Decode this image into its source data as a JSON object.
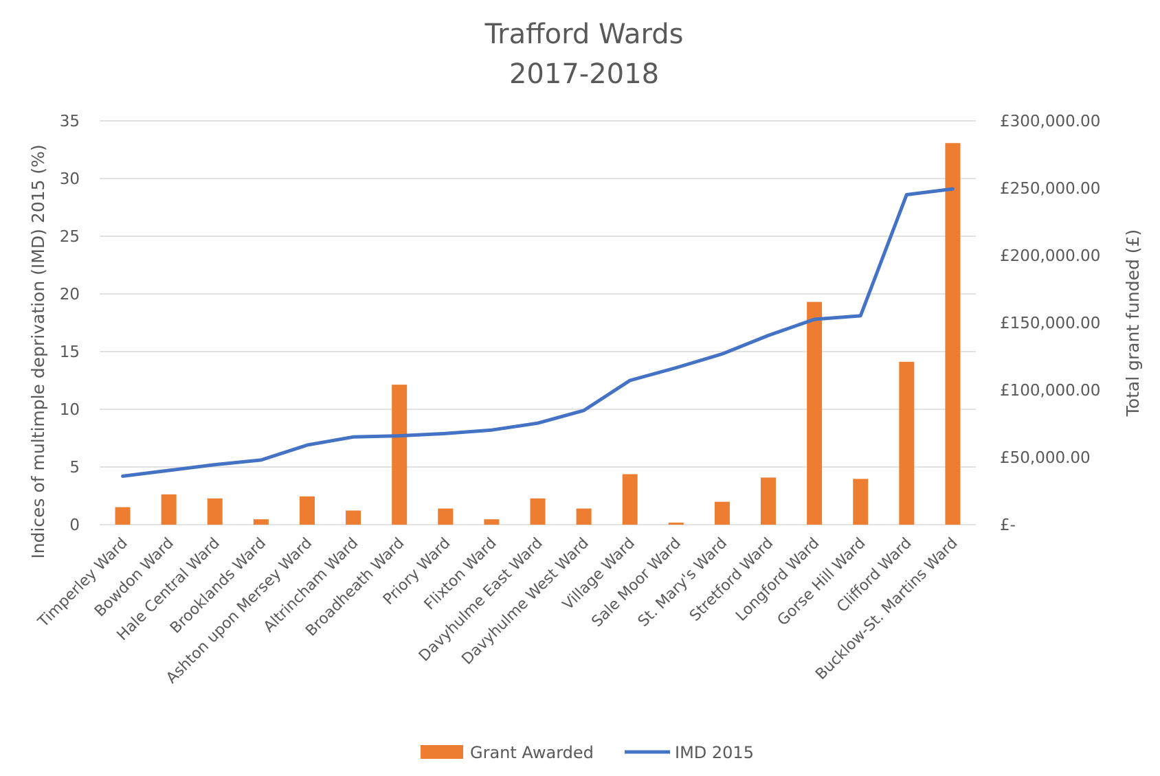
{
  "chart_data": {
    "type": "bar",
    "title": [
      "Trafford Wards",
      "2017-2018"
    ],
    "ylabel": "Indices of multimple deprivation (IMD) 2015 (%)",
    "y2label": "Total grant funded (£)",
    "categories": [
      "Timperley Ward",
      "Bowdon Ward",
      "Hale Central Ward",
      "Brooklands Ward",
      "Ashton upon Mersey Ward",
      "Altrincham Ward",
      "Broadheath Ward",
      "Priory Ward",
      "Flixton Ward",
      "Davyhulme East Ward",
      "Davyhulme West Ward",
      "Village Ward",
      "Sale Moor Ward",
      "St. Mary's Ward",
      "Stretford Ward",
      "Longford Ward",
      "Gorse Hill Ward",
      "Clifford Ward",
      "Bucklow-St. Martins Ward"
    ],
    "ylim": [
      0,
      35
    ],
    "yticks": [
      "0",
      "5",
      "10",
      "15",
      "20",
      "25",
      "30",
      "35"
    ],
    "y2lim": [
      0,
      300000
    ],
    "y2ticks": [
      "£-",
      "£50,000.00",
      "£100,000.00",
      "£150,000.00",
      "£200,000.00",
      "£250,000.00",
      "£300,000.00"
    ],
    "series": [
      {
        "name": "Grant Awarded",
        "type": "bar",
        "axis": "right",
        "color": "#ED7D31",
        "values": [
          13000,
          22500,
          19500,
          4000,
          21000,
          10500,
          104000,
          12000,
          4000,
          19500,
          12000,
          37500,
          1500,
          17000,
          35000,
          165500,
          34000,
          121000,
          283500
        ]
      },
      {
        "name": "IMD 2015",
        "type": "line",
        "axis": "left",
        "color": "#4472C4",
        "values": [
          4.2,
          4.7,
          5.2,
          5.6,
          6.9,
          7.6,
          7.7,
          7.9,
          8.2,
          8.8,
          9.9,
          12.5,
          13.6,
          14.8,
          16.4,
          17.8,
          18.1,
          28.6,
          29.1
        ]
      }
    ],
    "grid": true,
    "legend": "bottom"
  }
}
